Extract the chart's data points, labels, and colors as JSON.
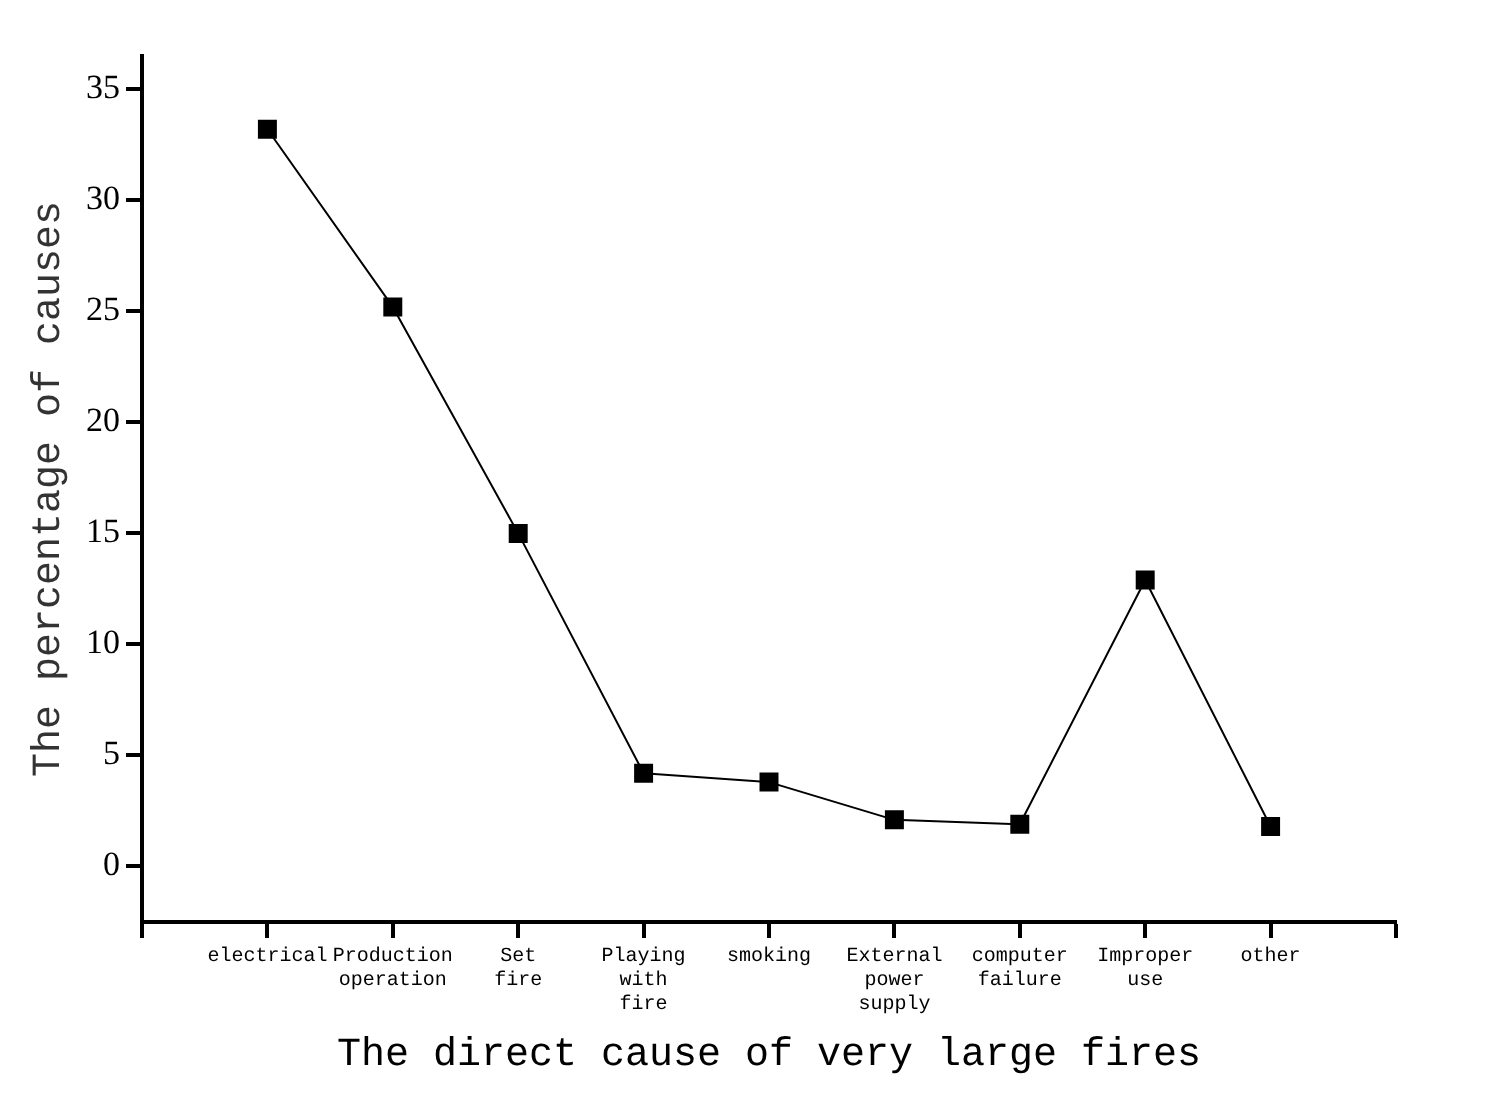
{
  "chart_data": {
    "type": "line",
    "xlabel": "The direct cause of very large fires",
    "ylabel": "The percentage of causes",
    "categories": [
      null,
      "electrical",
      "Production operation",
      "Set fire",
      "Playing with fire",
      "smoking",
      "External power supply",
      "computer failure",
      "Improper use",
      "other",
      null
    ],
    "series": [
      {
        "color": "#000000",
        "values": [
          null,
          33.2,
          25.2,
          15.0,
          4.2,
          3.8,
          2.1,
          1.9,
          12.9,
          1.8,
          null
        ]
      }
    ],
    "ylim": [
      -2.5,
      36.5
    ],
    "yticks": [
      0,
      5,
      10,
      15,
      20,
      25,
      30,
      35
    ],
    "grid": false,
    "legend": false,
    "marker": "square",
    "line_style": "solid"
  }
}
